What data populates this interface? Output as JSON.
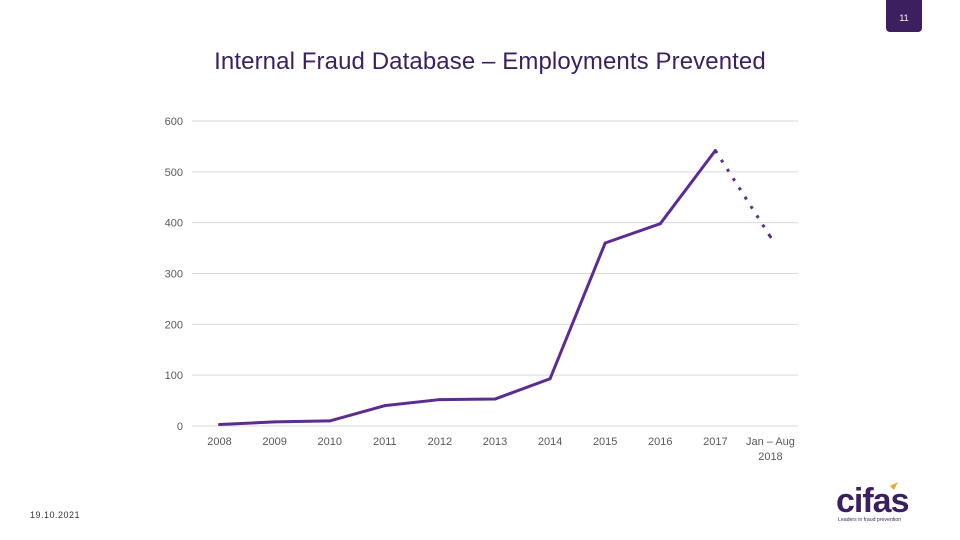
{
  "slide": {
    "page_number": "11",
    "date": "19.10.2021"
  },
  "brand": {
    "logo_text": "cifas",
    "tagline": "Leaders in fraud prevention",
    "accent_color": "#5c2d91",
    "dark_color": "#3b1f5e",
    "gold_color": "#f0a830"
  },
  "chart_data": {
    "type": "line",
    "title": "Internal Fraud Database – Employments Prevented",
    "categories": [
      "2008",
      "2009",
      "2010",
      "2011",
      "2012",
      "2013",
      "2014",
      "2015",
      "2016",
      "2017",
      "Jan – Aug 2018"
    ],
    "category_lines": [
      [
        "2008"
      ],
      [
        "2009"
      ],
      [
        "2010"
      ],
      [
        "2011"
      ],
      [
        "2012"
      ],
      [
        "2013"
      ],
      [
        "2014"
      ],
      [
        "2015"
      ],
      [
        "2016"
      ],
      [
        "2017"
      ],
      [
        "Jan – Aug",
        "2018"
      ]
    ],
    "values": [
      3,
      8,
      10,
      40,
      52,
      53,
      93,
      360,
      398,
      542,
      372
    ],
    "dashed_from_index": 9,
    "ylim": [
      0,
      600
    ],
    "yticks": [
      0,
      100,
      200,
      300,
      400,
      500,
      600
    ],
    "xlabel": "",
    "ylabel": "",
    "grid": true,
    "line_color": "#5c2d91"
  }
}
